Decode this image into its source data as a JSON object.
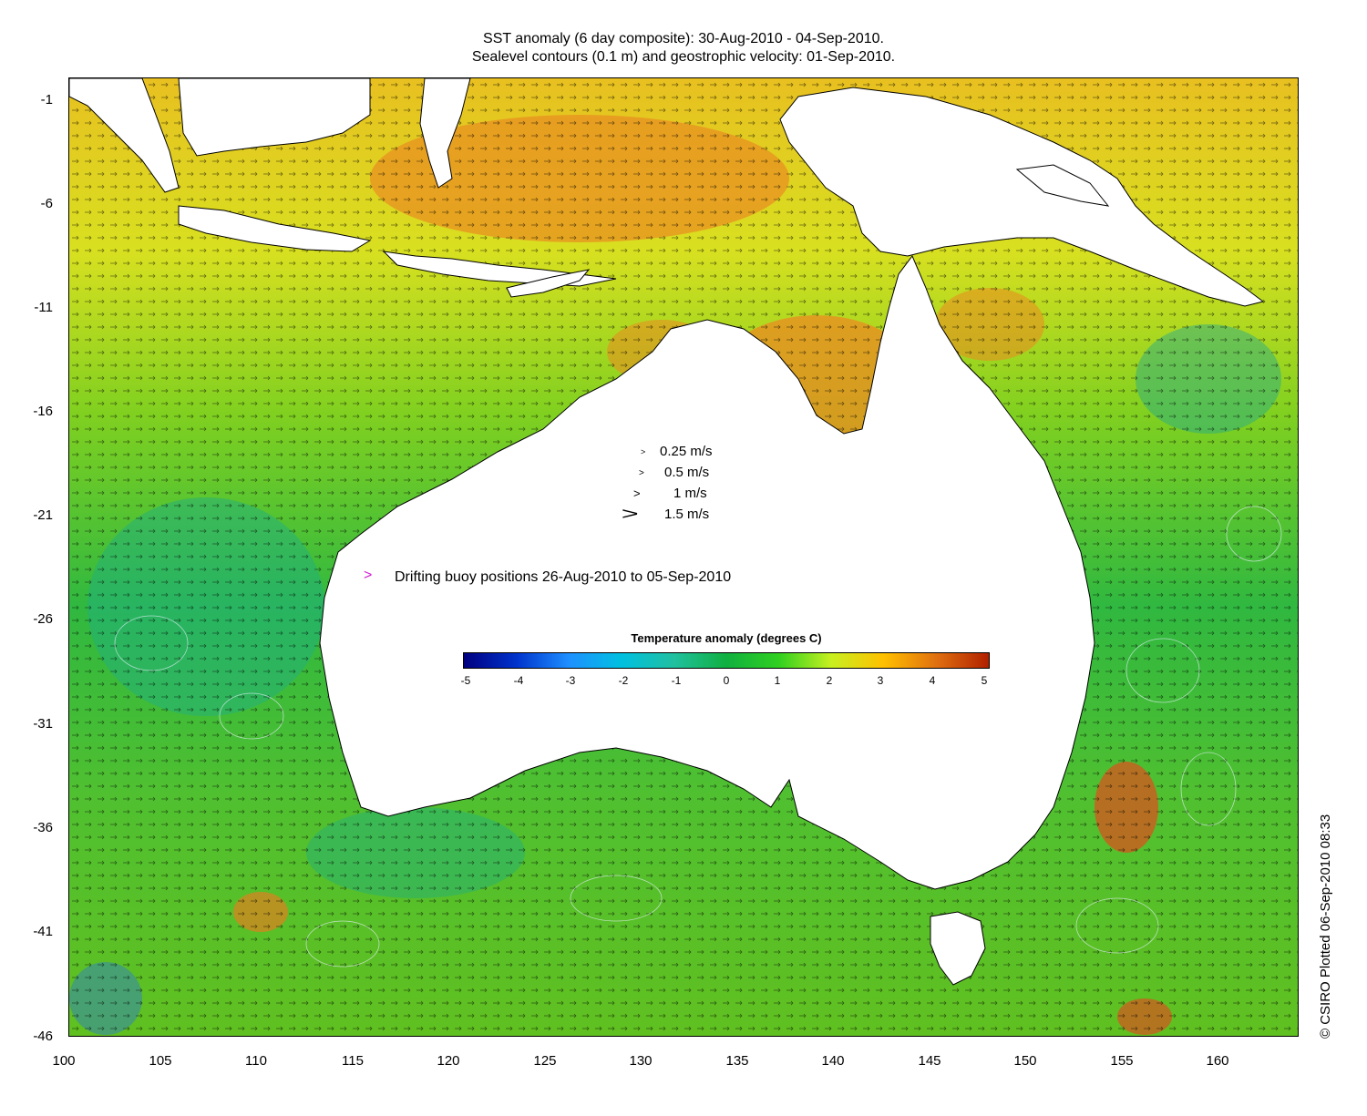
{
  "title": {
    "line1": "SST anomaly (6 day composite): 30-Aug-2010 - 04-Sep-2010.",
    "line2": "Sealevel contours (0.1 m) and geostrophic velocity: 01-Sep-2010."
  },
  "axes": {
    "x_ticks": [
      "100",
      "105",
      "110",
      "115",
      "120",
      "125",
      "130",
      "135",
      "140",
      "145",
      "150",
      "155",
      "160"
    ],
    "y_ticks": [
      "-1",
      "-6",
      "-11",
      "-16",
      "-21",
      "-26",
      "-31",
      "-36",
      "-41",
      "-46"
    ],
    "x_range": [
      100,
      164
    ],
    "y_range": [
      -46,
      0.5
    ]
  },
  "velocity_legend": [
    {
      "label": "0.25 m/s",
      "speed": 0.25
    },
    {
      "label": "0.5 m/s",
      "speed": 0.5
    },
    {
      "label": "1 m/s",
      "speed": 1
    },
    {
      "label": "1.5 m/s",
      "speed": 1.5
    }
  ],
  "buoy_legend": {
    "label": "Drifting buoy positions 26-Aug-2010 to 05-Sep-2010",
    "color": "#d020d0"
  },
  "colorbar": {
    "title": "Temperature anomaly (degrees C)",
    "ticks": [
      "-5",
      "-4",
      "-3",
      "-2",
      "-1",
      "0",
      "1",
      "2",
      "3",
      "4",
      "5"
    ],
    "range": [
      -5,
      5
    ],
    "colors": [
      "#000080",
      "#0033cc",
      "#1e90ff",
      "#00c0e0",
      "#20c0a0",
      "#10b040",
      "#30d020",
      "#c8f020",
      "#ffc000",
      "#e07010",
      "#b02000"
    ]
  },
  "copyright": "© CSIRO Plotted 06-Sep-2010 08:33"
}
